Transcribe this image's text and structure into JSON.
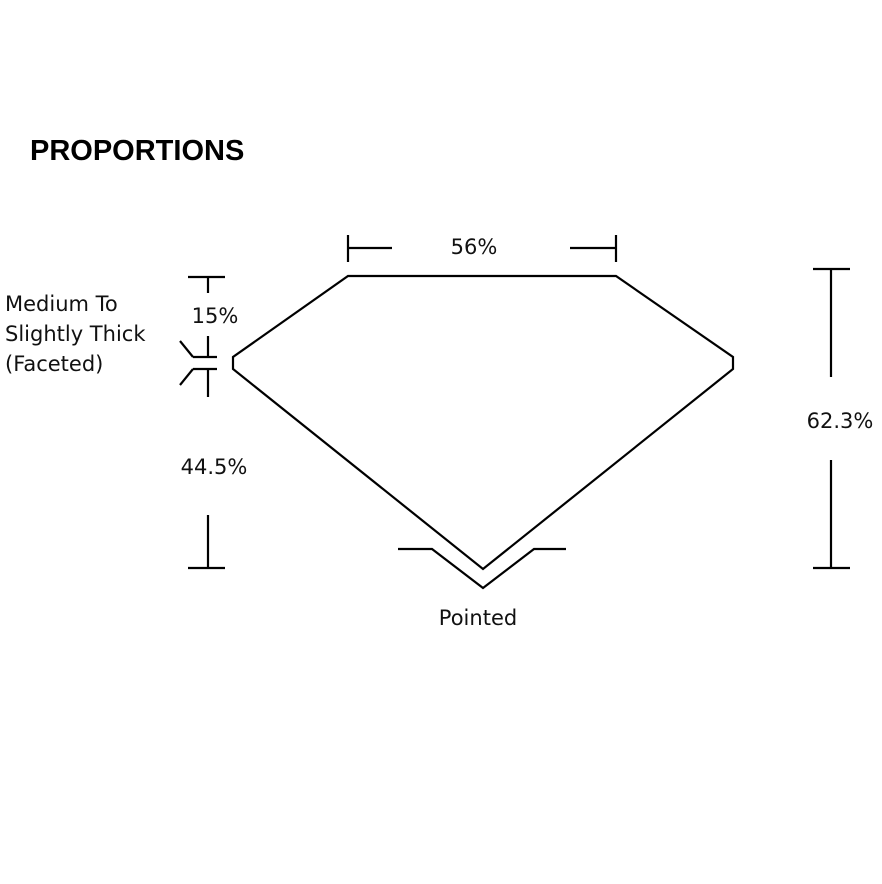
{
  "title": "PROPORTIONS",
  "labels": {
    "table": "56%",
    "crown": "15%",
    "pavilion": "44.5%",
    "total_depth": "62.3%",
    "girdle": [
      "Medium To",
      "Slightly Thick",
      "(Faceted)"
    ],
    "culet": "Pointed"
  }
}
